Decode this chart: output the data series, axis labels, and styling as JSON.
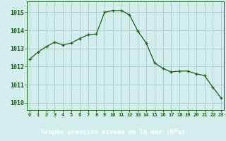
{
  "hours": [
    0,
    1,
    2,
    3,
    4,
    5,
    6,
    7,
    8,
    9,
    10,
    11,
    12,
    13,
    14,
    15,
    16,
    17,
    18,
    19,
    20,
    21,
    22,
    23
  ],
  "pressure": [
    1012.4,
    1012.8,
    1013.1,
    1013.35,
    1013.2,
    1013.3,
    1013.55,
    1013.75,
    1013.8,
    1015.0,
    1015.1,
    1015.1,
    1014.85,
    1013.95,
    1013.3,
    1012.2,
    1011.9,
    1011.7,
    1011.75,
    1011.75,
    1011.6,
    1011.5,
    1010.85,
    1010.25
  ],
  "line_color": "#1a5c1a",
  "bg_color": "#d4eeee",
  "grid_color": "#aad0d0",
  "xlabel": "Graphe pression niveau de la mer (hPa)",
  "xlabel_bg": "#2a6e2a",
  "xlabel_color": "#ffffff",
  "tick_color": "#1a5c1a",
  "ylim_min": 1009.6,
  "ylim_max": 1015.6,
  "yticks": [
    1010,
    1011,
    1012,
    1013,
    1014,
    1015
  ],
  "xticks": [
    0,
    1,
    2,
    3,
    4,
    5,
    6,
    7,
    8,
    9,
    10,
    11,
    12,
    13,
    14,
    15,
    16,
    17,
    18,
    19,
    20,
    21,
    22,
    23
  ],
  "marker": "+"
}
